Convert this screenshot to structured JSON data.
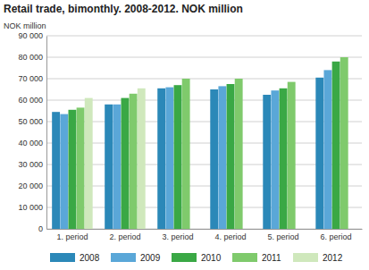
{
  "chart_data": {
    "type": "bar",
    "title": "Retail trade, bimonthly. 2008-2012. NOK million",
    "y_label": "NOK million",
    "categories": [
      "1. period",
      "2. period",
      "3. period",
      "4. period",
      "5. period",
      "6. period"
    ],
    "series": [
      {
        "name": "2008",
        "color": "#2b88b8",
        "values": [
          54500,
          58000,
          65500,
          65000,
          62500,
          70500
        ]
      },
      {
        "name": "2009",
        "color": "#5aa7d8",
        "values": [
          53500,
          58000,
          66000,
          66500,
          64500,
          74000
        ]
      },
      {
        "name": "2010",
        "color": "#3aa845",
        "values": [
          55500,
          61000,
          67000,
          67500,
          65500,
          78000
        ]
      },
      {
        "name": "2011",
        "color": "#7fca6c",
        "values": [
          56500,
          63000,
          70000,
          70000,
          68500,
          80000
        ]
      },
      {
        "name": "2012",
        "color": "#cfe8bc",
        "values": [
          61000,
          65500,
          null,
          null,
          null,
          null
        ]
      }
    ],
    "ylim": [
      0,
      90000
    ],
    "yticks": [
      0,
      {
        "value": 10000,
        "label": "10 000"
      },
      {
        "value": 20000,
        "label": "20 000"
      },
      {
        "value": 30000,
        "label": "30 000"
      },
      {
        "value": 40000,
        "label": "40 000"
      },
      {
        "value": 50000,
        "label": "50 000"
      },
      {
        "value": 60000,
        "label": "60 000"
      },
      {
        "value": 70000,
        "label": "70 000"
      },
      {
        "value": 80000,
        "label": "80 000"
      },
      {
        "value": 90000,
        "label": "90 000"
      }
    ],
    "grid": true,
    "legend": "bottom"
  }
}
